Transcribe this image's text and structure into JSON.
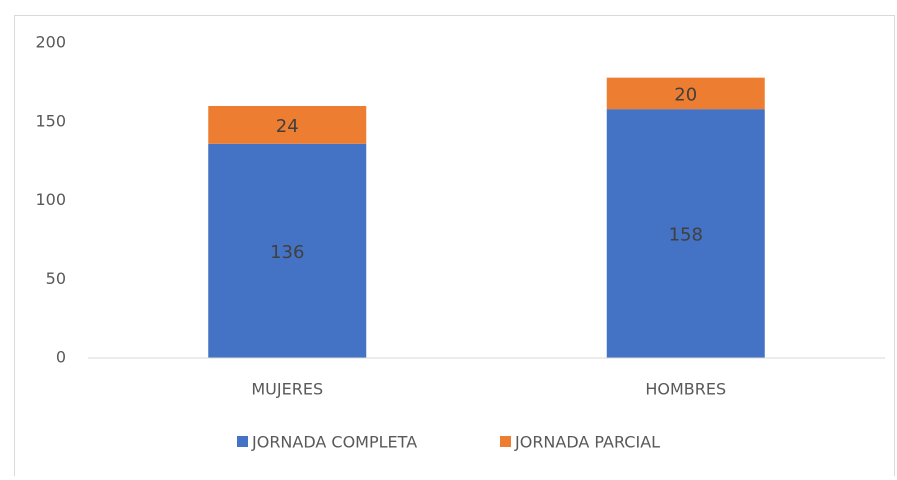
{
  "chart_data": {
    "type": "stacked_bar",
    "categories": [
      "MUJERES",
      "HOMBRES"
    ],
    "series": [
      {
        "name": "JORNADA COMPLETA",
        "color": "#4472c4",
        "values": [
          136,
          158
        ]
      },
      {
        "name": "JORNADA PARCIAL",
        "color": "#ed7d31",
        "values": [
          24,
          20
        ]
      }
    ],
    "ylim": [
      0,
      200
    ],
    "yticks": [
      0,
      50,
      100,
      150,
      200
    ],
    "grid": false,
    "legend": "bottom"
  }
}
